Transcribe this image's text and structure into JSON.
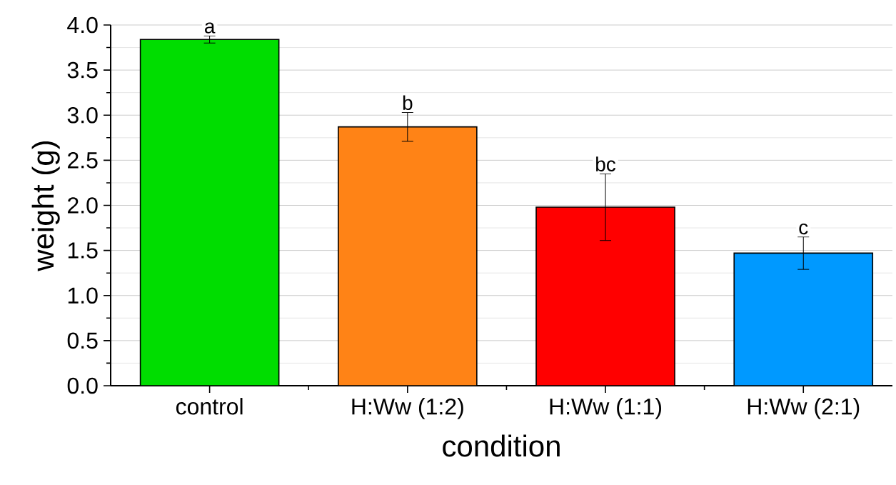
{
  "chart_data": {
    "type": "bar",
    "xlabel": "condition",
    "ylabel": "weight (g)",
    "categories": [
      "control",
      "H:Ww (1:2)",
      "H:Ww (1:1)",
      "H:Ww (2:1)"
    ],
    "values": [
      3.84,
      2.87,
      1.98,
      1.47
    ],
    "errors": [
      0.04,
      0.16,
      0.37,
      0.18
    ],
    "colors": [
      "#00dd00",
      "#ff8316",
      "#ff0000",
      "#0099ff"
    ],
    "ylim": [
      0,
      4
    ],
    "yticks": [
      {
        "value": 0,
        "label": "0.0"
      },
      {
        "value": 0.5,
        "label": "0.5"
      },
      {
        "value": 1,
        "label": "1.0"
      },
      {
        "value": 1.5,
        "label": "1.5"
      },
      {
        "value": 2,
        "label": "2.0"
      },
      {
        "value": 2.5,
        "label": "2.5"
      },
      {
        "value": 3,
        "label": "3.0"
      },
      {
        "value": 3.5,
        "label": "3.5"
      },
      {
        "value": 4,
        "label": "4.0"
      }
    ],
    "grid": "y",
    "annotations": [
      {
        "text": "a",
        "x": "control",
        "y": 3.88
      },
      {
        "text": "b",
        "x": "H:Ww (1:2)",
        "y": 3.03
      },
      {
        "text": "bc",
        "x": "H:Ww (1:1)",
        "y": 2.35
      },
      {
        "text": "c",
        "x": "H:Ww (2:1)",
        "y": 1.65
      }
    ]
  }
}
